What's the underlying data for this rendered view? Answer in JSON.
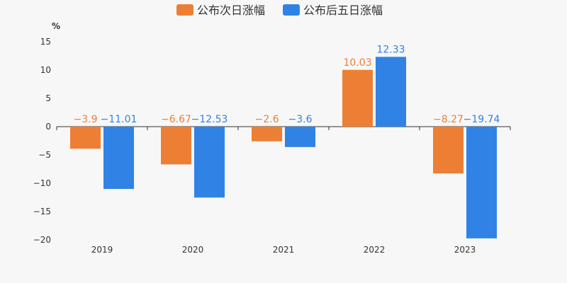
{
  "chart_data": {
    "type": "bar",
    "categories": [
      "2019",
      "2020",
      "2021",
      "2022",
      "2023"
    ],
    "series": [
      {
        "name": "公布次日涨幅",
        "color": "#ed7f34",
        "values": [
          -3.9,
          -6.67,
          -2.6,
          10.03,
          -8.27
        ],
        "labels": [
          "−3.9",
          "−6.67",
          "−2.6",
          "10.03",
          "−8.27"
        ]
      },
      {
        "name": "公布后五日涨幅",
        "color": "#3083e5",
        "values": [
          -11.01,
          -12.53,
          -3.6,
          12.33,
          -19.74
        ],
        "labels": [
          "−11.01",
          "−12.53",
          "−3.6",
          "12.33",
          "−19.74"
        ]
      }
    ],
    "ylabel": "%",
    "ylim": [
      -20,
      15
    ],
    "yticks": [
      15,
      10,
      5,
      0,
      -5,
      -10,
      -15,
      -20
    ],
    "ytick_labels": [
      "15",
      "10",
      "5",
      "0",
      "−5",
      "−10",
      "−15",
      "−20"
    ],
    "legend": "top-center",
    "grid": false
  }
}
